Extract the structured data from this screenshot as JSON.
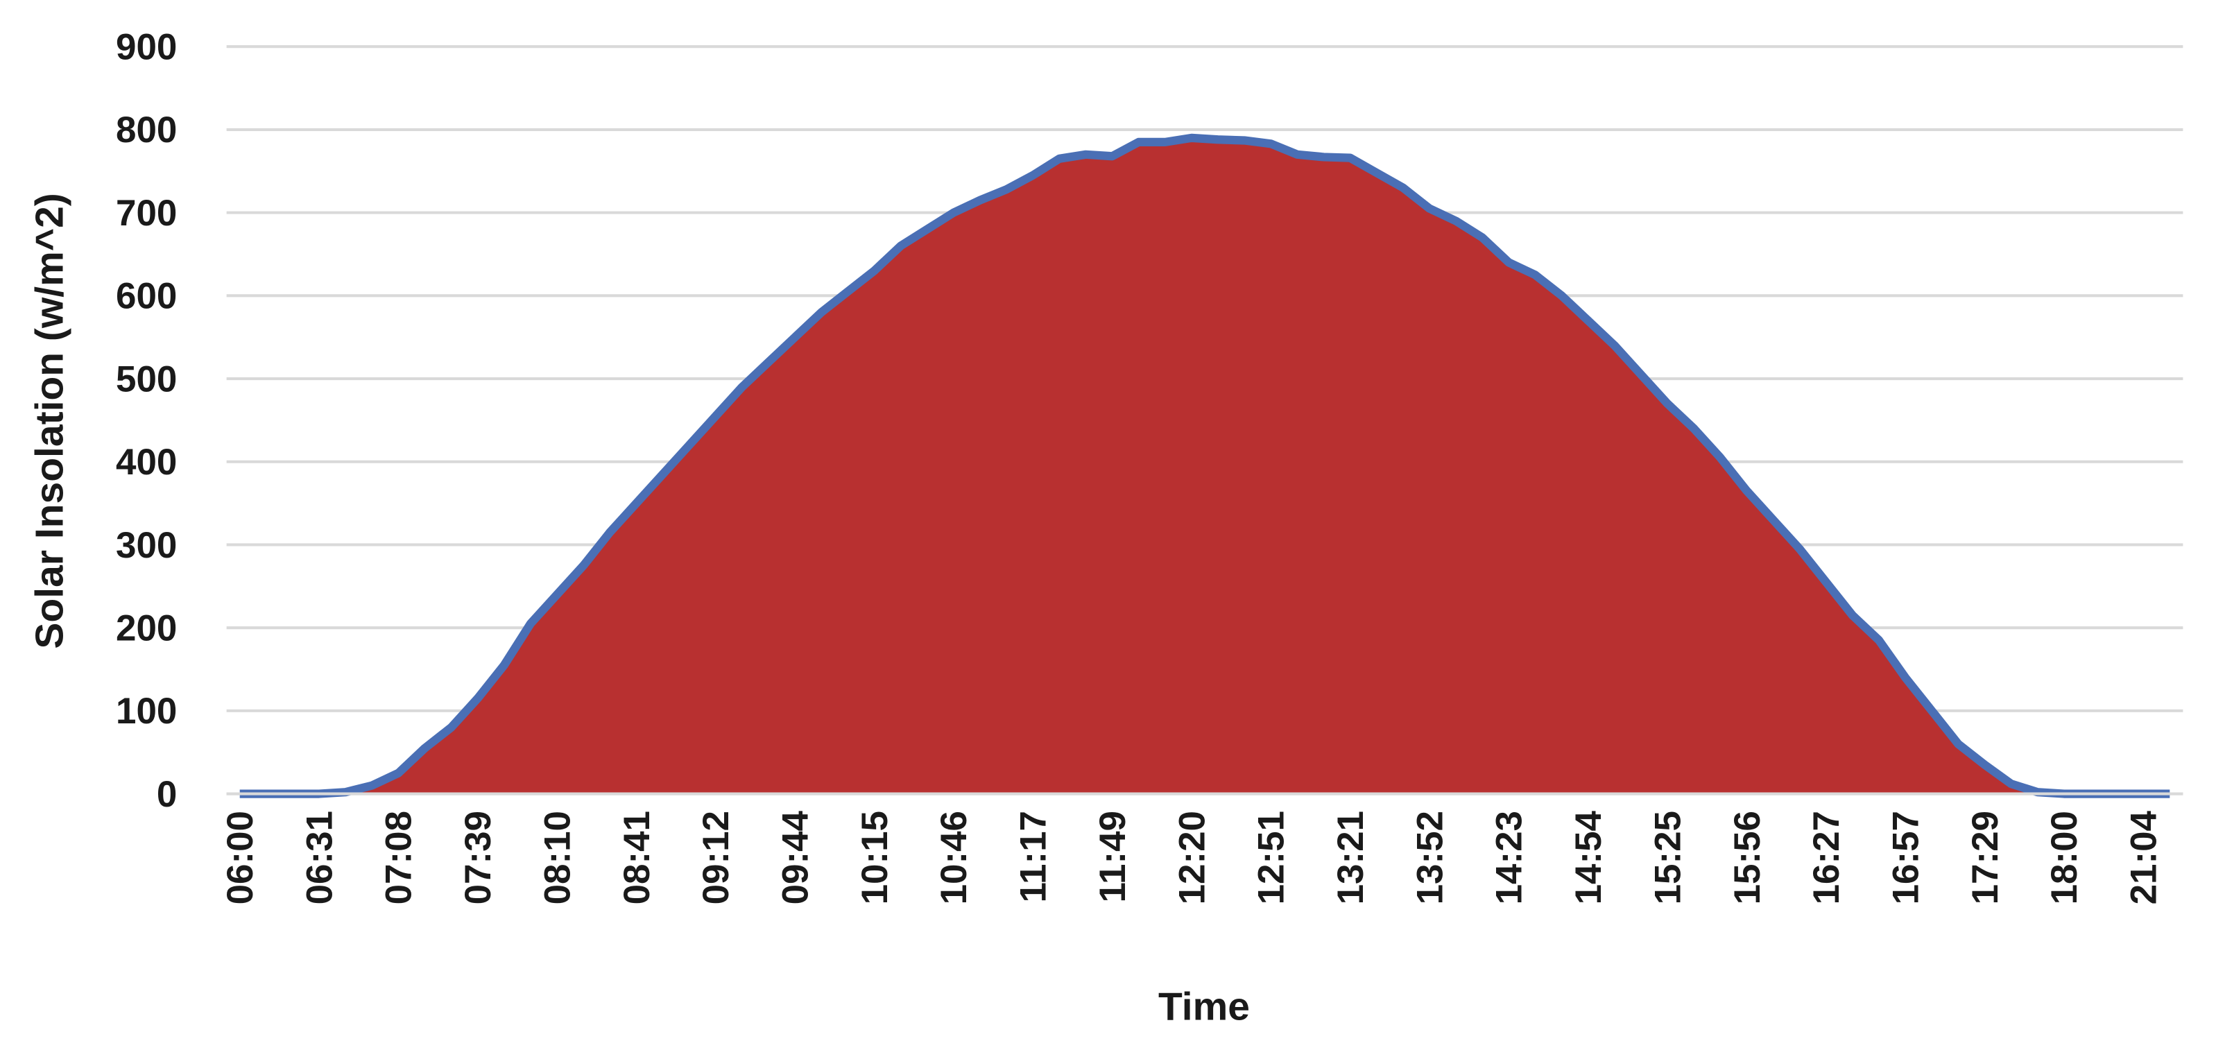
{
  "chart_data": {
    "type": "area",
    "x_label": "Time",
    "y_label": "Solar Insolation (w/m^2)",
    "categories": [
      "06:00",
      null,
      null,
      "06:31",
      null,
      null,
      "07:08",
      null,
      null,
      "07:39",
      null,
      null,
      "08:10",
      null,
      null,
      "08:41",
      null,
      null,
      "09:12",
      null,
      null,
      "09:44",
      null,
      null,
      "10:15",
      null,
      null,
      "10:46",
      null,
      null,
      "11:17",
      null,
      null,
      "11:49",
      null,
      null,
      "12:20",
      null,
      null,
      "12:51",
      null,
      null,
      "13:21",
      null,
      null,
      "13:52",
      null,
      null,
      "14:23",
      null,
      null,
      "14:54",
      null,
      null,
      "15:25",
      null,
      null,
      "15:56",
      null,
      null,
      "16:27",
      null,
      null,
      "16:57",
      null,
      null,
      "17:29",
      null,
      null,
      "18:00",
      null,
      null,
      "21:04",
      null
    ],
    "series": [
      {
        "name": "Solar Insolation",
        "color": "#b83030",
        "line_color": "#4a6fb5",
        "values": [
          0,
          0,
          0,
          0,
          2,
          10,
          25,
          55,
          80,
          115,
          155,
          205,
          240,
          275,
          315,
          350,
          385,
          420,
          455,
          490,
          520,
          550,
          580,
          605,
          630,
          660,
          680,
          700,
          715,
          728,
          745,
          765,
          770,
          768,
          785,
          785,
          790,
          788,
          787,
          783,
          770,
          767,
          766,
          748,
          730,
          705,
          690,
          670,
          640,
          625,
          600,
          570,
          540,
          505,
          470,
          440,
          405,
          365,
          330,
          295,
          255,
          215,
          185,
          140,
          100,
          60,
          35,
          12,
          2,
          0,
          0,
          0,
          0,
          0
        ]
      }
    ],
    "ylim": [
      0,
      900
    ],
    "yticks": [
      0,
      100,
      200,
      300,
      400,
      500,
      600,
      700,
      800,
      900
    ],
    "grid": true
  }
}
